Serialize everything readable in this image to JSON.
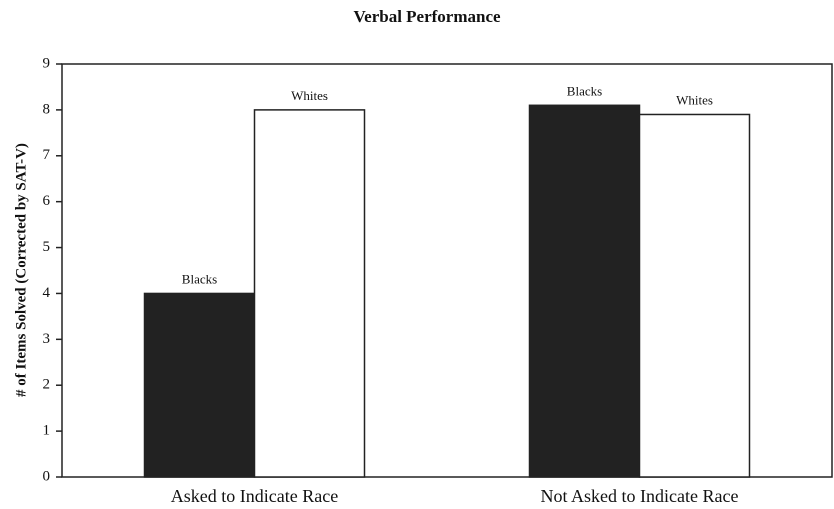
{
  "chart_data": {
    "type": "bar",
    "title": "Verbal Performance",
    "y_label": "# of Items Solved (Corrected by SAT-V)",
    "categories": [
      "Asked to Indicate Race",
      "Not Asked to Indicate Race"
    ],
    "series": [
      {
        "name": "Blacks",
        "color": "#222222",
        "values": [
          4.0,
          8.1
        ]
      },
      {
        "name": "Whites",
        "color": "#ffffff",
        "values": [
          8.0,
          7.9
        ]
      }
    ],
    "ylim": [
      0,
      9
    ],
    "yticks": [
      0,
      1,
      2,
      3,
      4,
      5,
      6,
      7,
      8,
      9
    ],
    "grid": false
  }
}
